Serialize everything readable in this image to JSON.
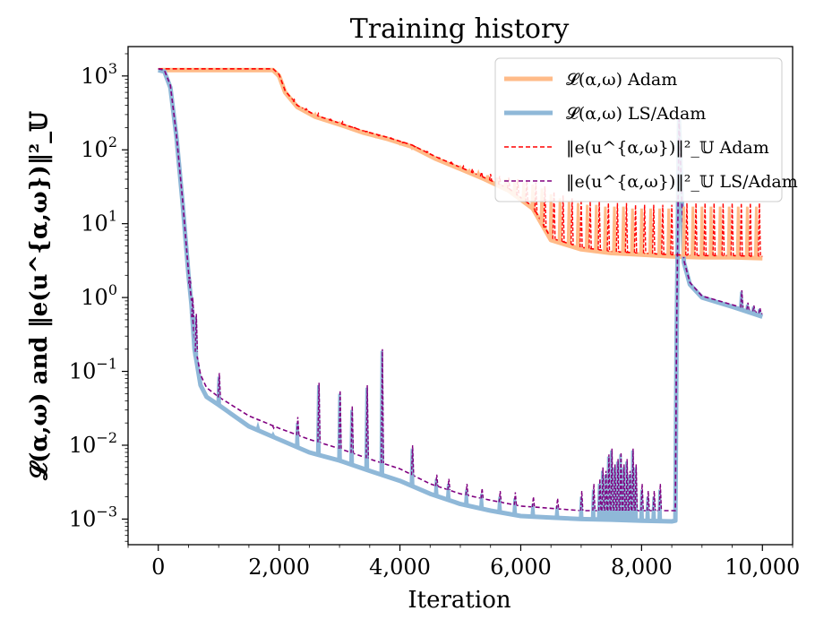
{
  "chart_data": {
    "type": "line",
    "title": "Training history",
    "xlabel": "Iteration",
    "ylabel": "𝓛(α,ω)   and   ‖e(u^{α,ω})‖²_𝕌",
    "xlim": [
      -500,
      10500
    ],
    "ylim": [
      0.00045,
      2500
    ],
    "yscale": "log",
    "x_ticks": [
      0,
      2000,
      4000,
      6000,
      8000,
      10000
    ],
    "x_tick_labels": [
      "0",
      "2,000",
      "4,000",
      "6,000",
      "8,000",
      "10,000"
    ],
    "y_ticks": [
      0.001,
      0.01,
      0.1,
      1,
      10,
      100,
      1000
    ],
    "y_tick_labels": [
      {
        "base": "10",
        "exp": "−3"
      },
      {
        "base": "10",
        "exp": "−2"
      },
      {
        "base": "10",
        "exp": "−1"
      },
      {
        "base": "10",
        "exp": "0"
      },
      {
        "base": "10",
        "exp": "1"
      },
      {
        "base": "10",
        "exp": "2"
      },
      {
        "base": "10",
        "exp": "3"
      }
    ],
    "grid": false,
    "legend_position": "top-right",
    "series": [
      {
        "name": "𝓛(α,ω) Adam",
        "color": "#ffbb88",
        "style": "solid",
        "x": [
          0,
          100,
          500,
          1000,
          1500,
          1900,
          2000,
          2100,
          2300,
          2600,
          3000,
          3400,
          3800,
          4200,
          4600,
          5000,
          5400,
          5800,
          6200,
          6500,
          7000,
          7500,
          8000,
          8500,
          9000,
          9500,
          10000
        ],
        "y": [
          1200,
          1200,
          1200,
          1200,
          1200,
          1200,
          1000,
          600,
          380,
          280,
          220,
          170,
          140,
          110,
          75,
          55,
          40,
          28,
          16,
          6,
          4.5,
          4.0,
          3.8,
          3.6,
          3.5,
          3.5,
          3.4
        ]
      },
      {
        "name": "𝓛(α,ω) LS/Adam",
        "color": "#8fb8d8",
        "style": "solid",
        "x": [
          0,
          100,
          200,
          300,
          400,
          500,
          550,
          600,
          700,
          800,
          1000,
          1500,
          2000,
          2500,
          3000,
          3500,
          4000,
          4500,
          5000,
          5500,
          6000,
          6500,
          7000,
          7500,
          8000,
          8500,
          8560,
          8580,
          8620,
          8700,
          8800,
          9000,
          9500,
          10000
        ],
        "y": [
          1200,
          1150,
          700,
          150,
          20,
          2.0,
          0.8,
          0.2,
          0.065,
          0.045,
          0.035,
          0.018,
          0.012,
          0.008,
          0.0062,
          0.0045,
          0.0033,
          0.0022,
          0.0016,
          0.0013,
          0.0011,
          0.00105,
          0.001,
          0.00098,
          0.00095,
          0.00093,
          0.00095,
          0.3,
          250,
          3.0,
          1.5,
          1.0,
          0.75,
          0.55
        ]
      },
      {
        "name": "‖e(u^{α,ω})‖²_𝕌 Adam",
        "color": "#ff0000",
        "style": "dashed",
        "x": [
          0,
          100,
          500,
          1000,
          1500,
          1900,
          2000,
          2100,
          2300,
          2600,
          3000,
          3400,
          3800,
          4200,
          4600,
          5000,
          5400,
          5800,
          6200,
          6500,
          7000,
          7500,
          8000,
          8500,
          9000,
          9500,
          10000
        ],
        "y": [
          1250,
          1250,
          1250,
          1250,
          1250,
          1250,
          1050,
          630,
          400,
          295,
          230,
          180,
          147,
          116,
          80,
          58,
          42,
          30,
          17,
          6.4,
          4.8,
          4.2,
          4.0,
          3.8,
          3.7,
          3.7,
          3.6
        ]
      },
      {
        "name": "‖e(u^{α,ω})‖²_𝕌 LS/Adam",
        "color": "#800080",
        "style": "dashed",
        "x": [
          0,
          100,
          200,
          300,
          400,
          500,
          550,
          600,
          700,
          800,
          1000,
          1500,
          2000,
          2500,
          3000,
          3500,
          4000,
          4500,
          5000,
          5500,
          6000,
          6500,
          7000,
          7500,
          8000,
          8500,
          8560,
          8580,
          8620,
          8700,
          8800,
          9000,
          9500,
          10000
        ],
        "y": [
          1250,
          1200,
          750,
          160,
          22,
          2.2,
          0.9,
          0.25,
          0.09,
          0.06,
          0.045,
          0.025,
          0.017,
          0.012,
          0.009,
          0.0065,
          0.0048,
          0.003,
          0.0022,
          0.0018,
          0.0015,
          0.0014,
          0.0013,
          0.0013,
          0.0013,
          0.0013,
          0.0013,
          0.35,
          260,
          3.2,
          1.6,
          1.05,
          0.8,
          0.6
        ]
      }
    ],
    "spikes": [
      {
        "series": "𝓛(α,ω) Adam",
        "color": "#ffbb88",
        "x": [
          2200,
          2400,
          2600,
          2800,
          3000,
          3200,
          3400,
          3600,
          3800,
          4000,
          4200,
          4400,
          4600,
          4800,
          5000,
          5150,
          5300,
          5450,
          5600,
          5750,
          5900,
          6050,
          6200,
          6350,
          6500,
          6650,
          6800,
          6950,
          7100,
          7250,
          7400,
          7550,
          7700,
          7850,
          8000,
          8150,
          8300,
          8450,
          8700,
          8850,
          9000,
          9150,
          9300,
          9450,
          9600,
          9750,
          9900
        ],
        "y": [
          460,
          350,
          300,
          250,
          230,
          190,
          170,
          150,
          140,
          120,
          105,
          90,
          75,
          65,
          58,
          52,
          48,
          45,
          42,
          40,
          38,
          36,
          34,
          30,
          25,
          22,
          20,
          19,
          18,
          18,
          17,
          17,
          17,
          16,
          16,
          16,
          16,
          16,
          17,
          17,
          17,
          17,
          17,
          17,
          17,
          17,
          17
        ]
      },
      {
        "series": "‖e(u^{α,ω})‖²_𝕌 Adam",
        "color": "#ff0000",
        "x": [
          2250,
          2450,
          2650,
          2850,
          3050,
          3250,
          3450,
          3650,
          3850,
          4050,
          4250,
          4450,
          4650,
          4850,
          5050,
          5200,
          5350,
          5500,
          5650,
          5800,
          5950,
          6100,
          6250,
          6400,
          6550,
          6700,
          6850,
          7000,
          7150,
          7300,
          7450,
          7600,
          7750,
          7900,
          8050,
          8200,
          8350,
          8500,
          8750,
          8900,
          9050,
          9200,
          9350,
          9500,
          9650,
          9800,
          9950
        ],
        "y": [
          480,
          360,
          310,
          260,
          240,
          200,
          178,
          155,
          145,
          125,
          110,
          95,
          78,
          68,
          60,
          55,
          50,
          47,
          44,
          42,
          40,
          38,
          36,
          32,
          27,
          24,
          22,
          21,
          20,
          20,
          19,
          19,
          19,
          18,
          18,
          18,
          18,
          18,
          19,
          19,
          19,
          19,
          19,
          19,
          19,
          19,
          19
        ]
      },
      {
        "series": "𝓛(α,ω) LS/Adam",
        "color": "#8fb8d8",
        "x": [
          510,
          560,
          620,
          1000,
          1650,
          1900,
          2300,
          2650,
          3000,
          3200,
          3450,
          3700,
          4200,
          4600,
          4800,
          5100,
          5350,
          5650,
          5900,
          6200,
          6600,
          7000,
          7200,
          7300,
          7350,
          7400,
          7450,
          7500,
          7550,
          7600,
          7650,
          7700,
          7750,
          7800,
          7850,
          7900,
          8000,
          8100,
          8200,
          8300,
          9650,
          9750,
          9850,
          9950
        ],
        "y": [
          1.7,
          0.9,
          0.55,
          0.085,
          0.018,
          0.014,
          0.02,
          0.065,
          0.05,
          0.03,
          0.06,
          0.19,
          0.009,
          0.0035,
          0.003,
          0.0025,
          0.0022,
          0.002,
          0.0019,
          0.0016,
          0.0015,
          0.002,
          0.0025,
          0.003,
          0.0045,
          0.004,
          0.007,
          0.0085,
          0.005,
          0.006,
          0.0075,
          0.005,
          0.006,
          0.004,
          0.0085,
          0.005,
          0.0025,
          0.002,
          0.002,
          0.0025,
          1.2,
          0.8,
          0.75,
          0.7
        ]
      },
      {
        "series": "‖e(u^{α,ω})‖²_𝕌 LS/Adam",
        "color": "#800080",
        "x": [
          520,
          570,
          630,
          1010,
          1660,
          1910,
          2310,
          2660,
          3010,
          3210,
          3460,
          3710,
          4210,
          4610,
          4810,
          5110,
          5360,
          5660,
          5910,
          6210,
          6610,
          7010,
          7210,
          7310,
          7360,
          7410,
          7460,
          7510,
          7560,
          7610,
          7660,
          7710,
          7760,
          7810,
          7860,
          7910,
          8010,
          8110,
          8210,
          8310,
          9660,
          9760,
          9860,
          9960
        ],
        "y": [
          1.9,
          1.0,
          0.6,
          0.095,
          0.022,
          0.017,
          0.024,
          0.07,
          0.055,
          0.034,
          0.065,
          0.2,
          0.01,
          0.004,
          0.0035,
          0.003,
          0.0026,
          0.0024,
          0.0023,
          0.002,
          0.0019,
          0.0024,
          0.003,
          0.0035,
          0.005,
          0.0045,
          0.0075,
          0.009,
          0.0055,
          0.0065,
          0.008,
          0.0055,
          0.0065,
          0.0045,
          0.009,
          0.0055,
          0.003,
          0.0024,
          0.0024,
          0.003,
          1.25,
          0.85,
          0.78,
          0.72
        ]
      }
    ]
  }
}
